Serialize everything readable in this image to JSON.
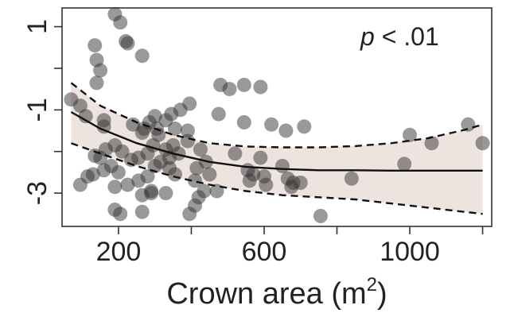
{
  "chart_data": {
    "type": "scatter",
    "title": "",
    "xlabel": "Crown area (m",
    "xlabel_sup": "2",
    "xlabel_close": ")",
    "ylabel": "",
    "xlim": [
      45,
      1225
    ],
    "ylim": [
      -3.8,
      1.45
    ],
    "x_ticks": [
      200,
      600,
      1000
    ],
    "x_tick_labels": [
      "200",
      "600",
      "1000"
    ],
    "x_minor_ticks": [
      400,
      800,
      1200
    ],
    "y_ticks": [
      1,
      -1,
      -3
    ],
    "y_tick_labels": [
      "1",
      "-1",
      "-3"
    ],
    "y_minor_ticks": [
      0,
      -2
    ],
    "annotation": {
      "italic": "p",
      "rest": " < .01"
    },
    "grid": false,
    "legend": "none",
    "colors": {
      "points": "#333333",
      "band": "#ede3df",
      "fit": "#111111",
      "axis": "#333333"
    },
    "fit_line": {
      "x": [
        70,
        150,
        250,
        350,
        450,
        550,
        650,
        750,
        850,
        950,
        1050,
        1150,
        1200
      ],
      "y": [
        -1.05,
        -1.45,
        -1.8,
        -2.05,
        -2.25,
        -2.37,
        -2.42,
        -2.45,
        -2.45,
        -2.46,
        -2.46,
        -2.46,
        -2.46
      ]
    },
    "ci_upper": {
      "x": [
        70,
        150,
        250,
        350,
        450,
        550,
        650,
        750,
        850,
        950,
        1050,
        1150,
        1200
      ],
      "y": [
        -0.35,
        -0.9,
        -1.3,
        -1.6,
        -1.8,
        -1.88,
        -1.9,
        -1.9,
        -1.87,
        -1.8,
        -1.68,
        -1.48,
        -1.35
      ]
    },
    "ci_lower": {
      "x": [
        70,
        150,
        250,
        350,
        450,
        550,
        650,
        750,
        850,
        950,
        1050,
        1150,
        1200
      ],
      "y": [
        -1.8,
        -2.05,
        -2.35,
        -2.6,
        -2.8,
        -2.95,
        -3.05,
        -3.1,
        -3.15,
        -3.25,
        -3.35,
        -3.45,
        -3.5
      ]
    },
    "points": [
      {
        "x": 190,
        "y": 1.3
      },
      {
        "x": 205,
        "y": 1.1
      },
      {
        "x": 220,
        "y": 0.65
      },
      {
        "x": 225,
        "y": 0.6
      },
      {
        "x": 135,
        "y": 0.55
      },
      {
        "x": 265,
        "y": 0.3
      },
      {
        "x": 140,
        "y": 0.2
      },
      {
        "x": 150,
        "y": -0.05
      },
      {
        "x": 140,
        "y": -0.35
      },
      {
        "x": 70,
        "y": -0.75
      },
      {
        "x": 95,
        "y": -0.9
      },
      {
        "x": 110,
        "y": -1.15
      },
      {
        "x": 160,
        "y": -1.25
      },
      {
        "x": 160,
        "y": -1.4
      },
      {
        "x": 480,
        "y": -0.4
      },
      {
        "x": 505,
        "y": -0.5
      },
      {
        "x": 545,
        "y": -0.4
      },
      {
        "x": 590,
        "y": -0.45
      },
      {
        "x": 395,
        "y": -0.85
      },
      {
        "x": 370,
        "y": -1.0
      },
      {
        "x": 345,
        "y": -1.1
      },
      {
        "x": 330,
        "y": -1.25
      },
      {
        "x": 300,
        "y": -1.15
      },
      {
        "x": 285,
        "y": -1.3
      },
      {
        "x": 305,
        "y": -1.45
      },
      {
        "x": 310,
        "y": -1.6
      },
      {
        "x": 240,
        "y": -1.35
      },
      {
        "x": 270,
        "y": -1.45
      },
      {
        "x": 265,
        "y": -1.55
      },
      {
        "x": 355,
        "y": -1.45
      },
      {
        "x": 390,
        "y": -1.5
      },
      {
        "x": 475,
        "y": -1.1
      },
      {
        "x": 545,
        "y": -1.3
      },
      {
        "x": 620,
        "y": -1.35
      },
      {
        "x": 660,
        "y": -1.5
      },
      {
        "x": 710,
        "y": -1.4
      },
      {
        "x": 390,
        "y": -1.75
      },
      {
        "x": 350,
        "y": -1.85
      },
      {
        "x": 330,
        "y": -1.95
      },
      {
        "x": 340,
        "y": -2.15
      },
      {
        "x": 365,
        "y": -2.05
      },
      {
        "x": 295,
        "y": -1.85
      },
      {
        "x": 280,
        "y": -2.05
      },
      {
        "x": 255,
        "y": -2.15
      },
      {
        "x": 235,
        "y": -2.2
      },
      {
        "x": 210,
        "y": -2.0
      },
      {
        "x": 190,
        "y": -1.85
      },
      {
        "x": 165,
        "y": -1.95
      },
      {
        "x": 150,
        "y": -2.15
      },
      {
        "x": 135,
        "y": -2.1
      },
      {
        "x": 180,
        "y": -2.35
      },
      {
        "x": 200,
        "y": -2.5
      },
      {
        "x": 160,
        "y": -2.45
      },
      {
        "x": 130,
        "y": -2.55
      },
      {
        "x": 115,
        "y": -2.6
      },
      {
        "x": 95,
        "y": -2.8
      },
      {
        "x": 190,
        "y": -2.85
      },
      {
        "x": 225,
        "y": -2.8
      },
      {
        "x": 255,
        "y": -2.7
      },
      {
        "x": 280,
        "y": -2.6
      },
      {
        "x": 300,
        "y": -2.35
      },
      {
        "x": 315,
        "y": -2.25
      },
      {
        "x": 340,
        "y": -2.4
      },
      {
        "x": 355,
        "y": -2.55
      },
      {
        "x": 290,
        "y": -2.95
      },
      {
        "x": 290,
        "y": -3.0
      },
      {
        "x": 330,
        "y": -3.0
      },
      {
        "x": 265,
        "y": -3.05
      },
      {
        "x": 425,
        "y": -1.95
      },
      {
        "x": 440,
        "y": -2.25
      },
      {
        "x": 415,
        "y": -2.4
      },
      {
        "x": 450,
        "y": -2.55
      },
      {
        "x": 410,
        "y": -2.7
      },
      {
        "x": 435,
        "y": -2.95
      },
      {
        "x": 470,
        "y": -2.95
      },
      {
        "x": 420,
        "y": -3.1
      },
      {
        "x": 410,
        "y": -3.3
      },
      {
        "x": 395,
        "y": -3.5
      },
      {
        "x": 520,
        "y": -2.05
      },
      {
        "x": 555,
        "y": -2.45
      },
      {
        "x": 560,
        "y": -2.7
      },
      {
        "x": 570,
        "y": -2.55
      },
      {
        "x": 600,
        "y": -2.6
      },
      {
        "x": 605,
        "y": -2.8
      },
      {
        "x": 665,
        "y": -2.65
      },
      {
        "x": 680,
        "y": -2.75
      },
      {
        "x": 675,
        "y": -2.85
      },
      {
        "x": 700,
        "y": -2.75
      },
      {
        "x": 755,
        "y": -3.55
      },
      {
        "x": 840,
        "y": -2.65
      },
      {
        "x": 190,
        "y": -3.4
      },
      {
        "x": 205,
        "y": -3.5
      },
      {
        "x": 265,
        "y": -3.45
      },
      {
        "x": 985,
        "y": -2.3
      },
      {
        "x": 1000,
        "y": -1.6
      },
      {
        "x": 1060,
        "y": -1.8
      },
      {
        "x": 1160,
        "y": -1.35
      },
      {
        "x": 1200,
        "y": -1.8
      },
      {
        "x": 650,
        "y": -2.35
      },
      {
        "x": 590,
        "y": -2.15
      }
    ]
  }
}
